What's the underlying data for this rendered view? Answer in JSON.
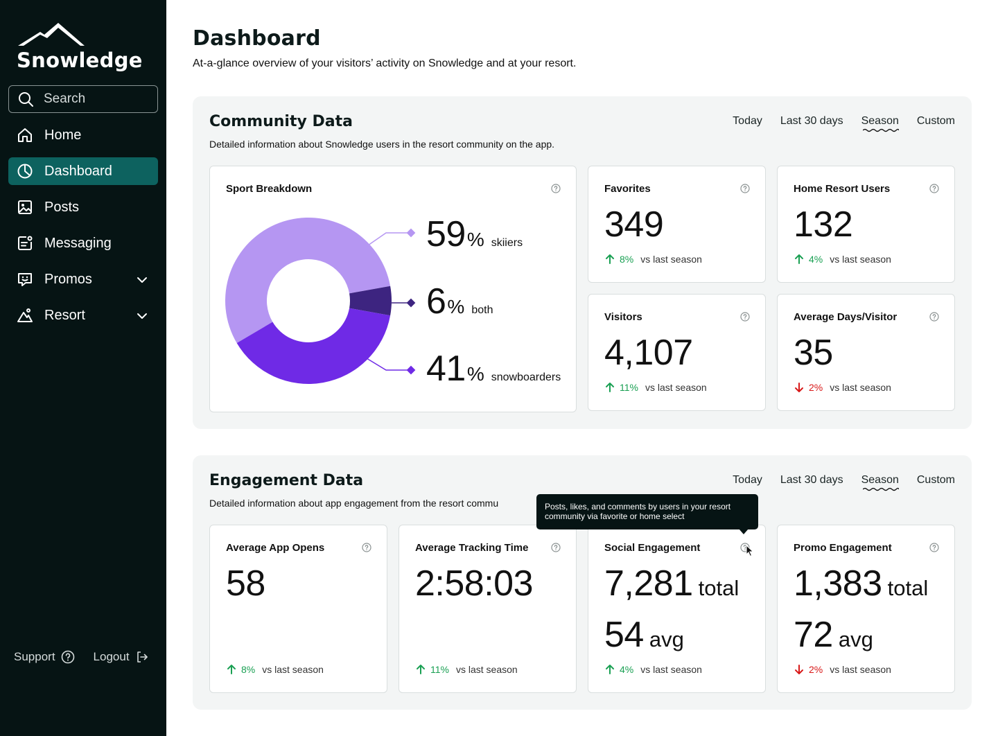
{
  "sidebar": {
    "brand": "Snowledge",
    "search_placeholder": "Search",
    "items": [
      {
        "label": "Home",
        "icon": "home-icon"
      },
      {
        "label": "Dashboard",
        "icon": "pie-chart-icon",
        "active": true
      },
      {
        "label": "Posts",
        "icon": "image-icon"
      },
      {
        "label": "Messaging",
        "icon": "message-icon"
      },
      {
        "label": "Promos",
        "icon": "chat-smile-icon",
        "expandable": true
      },
      {
        "label": "Resort",
        "icon": "mountain-icon",
        "expandable": true
      }
    ],
    "support_label": "Support",
    "logout_label": "Logout"
  },
  "page": {
    "title": "Dashboard",
    "subtitle": "At-a-glance overview of your visitors’ activity on Snowledge and at your resort."
  },
  "colors": {
    "sidebar_bg": "#061414",
    "active_nav": "#0d625f",
    "skiers": "#b596f2",
    "both": "#3d2480",
    "snowboarders": "#6f2ae6",
    "up": "#1aa053",
    "down": "#d81818"
  },
  "community": {
    "title": "Community Data",
    "description": "Detailed information about Snowledge users in the resort community on the app.",
    "ranges": [
      "Today",
      "Last 30 days",
      "Season",
      "Custom"
    ],
    "active_range": "Season",
    "sport_breakdown": {
      "title": "Sport Breakdown",
      "percent_sign": "%",
      "segments": [
        {
          "value": "59",
          "label": "skiiers"
        },
        {
          "value": "6",
          "label": "both"
        },
        {
          "value": "41",
          "label": "snowboarders"
        }
      ]
    },
    "cards": {
      "favorites": {
        "title": "Favorites",
        "value": "349",
        "change": "8%",
        "compare": "vs last season"
      },
      "home_resort": {
        "title": "Home Resort Users",
        "value": "132",
        "change": "4%",
        "compare": "vs last season"
      },
      "visitors": {
        "title": "Visitors",
        "value": "4,107",
        "change": "11%",
        "compare": "vs last season"
      },
      "avg_days": {
        "title": "Average Days/Visitor",
        "value": "35",
        "change": "2%",
        "compare": "vs last season"
      }
    }
  },
  "engagement": {
    "title": "Engagement Data",
    "description": "Detailed information about app engagement from the resort commu",
    "ranges": [
      "Today",
      "Last 30 days",
      "Season",
      "Custom"
    ],
    "active_range": "Season",
    "cards": {
      "app_opens": {
        "title": "Average App Opens",
        "value": "58",
        "change": "8%",
        "compare": "vs last season"
      },
      "tracking_time": {
        "title": "Average Tracking Time",
        "value": "2:58:03",
        "change": "11%",
        "compare": "vs last season"
      },
      "social": {
        "title": "Social Engagement",
        "total": "7,281",
        "total_unit": "total",
        "avg": "54",
        "avg_unit": "avg",
        "change": "4%",
        "compare": "vs last season"
      },
      "promo": {
        "title": "Promo Engagement",
        "total": "1,383",
        "total_unit": "total",
        "avg": "72",
        "avg_unit": "avg",
        "change": "2%",
        "compare": "vs last season"
      }
    },
    "tooltip": "Posts, likes, and comments by users in your resort community via favorite or home select"
  }
}
